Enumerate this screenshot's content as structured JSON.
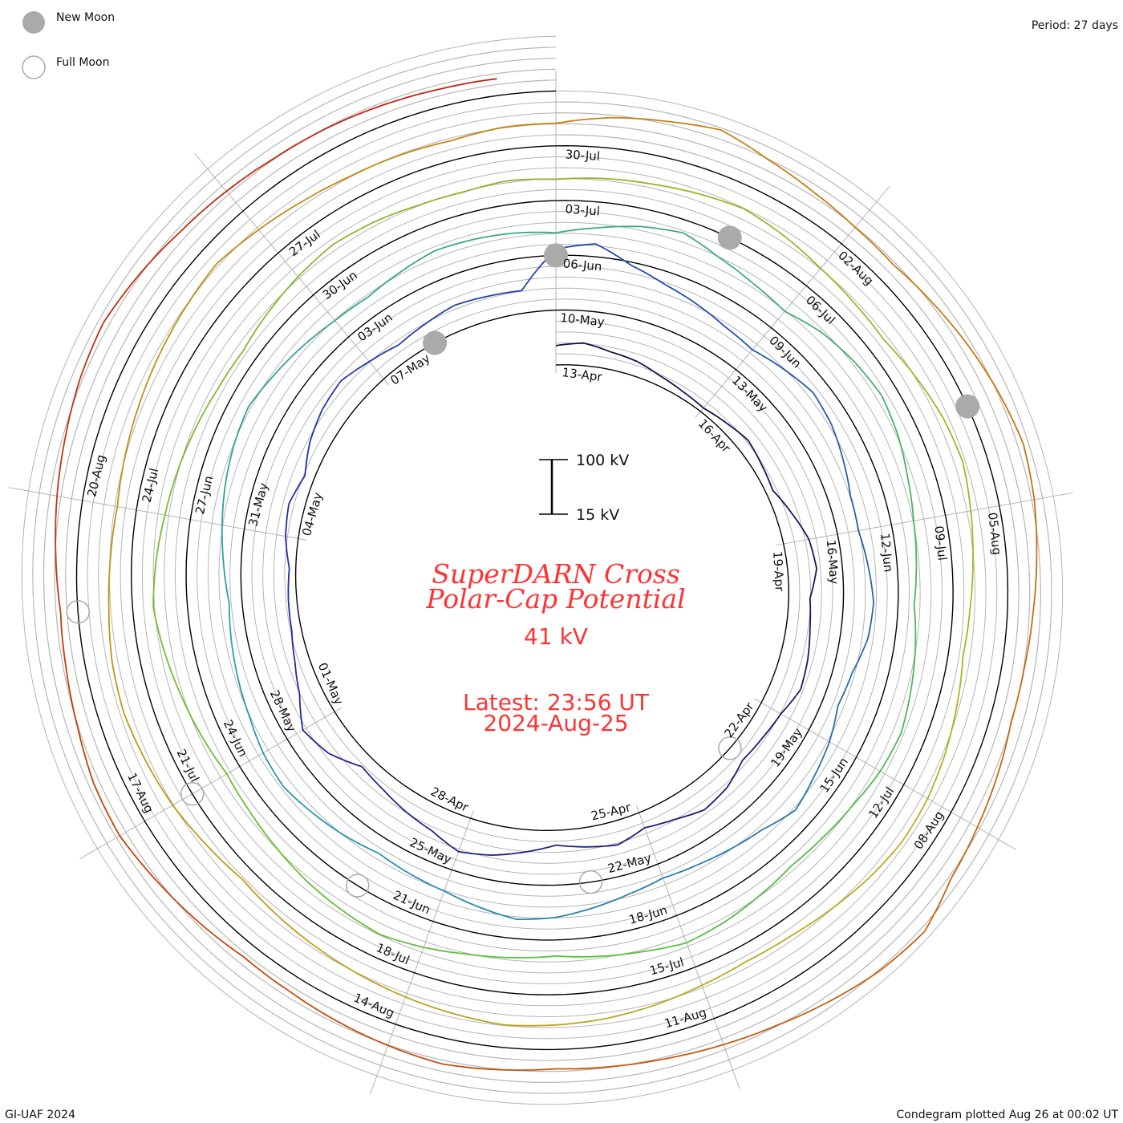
{
  "legend": {
    "new_moon": "New Moon",
    "full_moon": "Full Moon"
  },
  "period_label": "Period: 27 days",
  "footer_left": "GI-UAF 2024",
  "footer_right": "Condegram plotted Aug 26 at 00:02 UT",
  "colors": {
    "stops": [
      "#1a0a40",
      "#2233aa",
      "#2a9ab0",
      "#5cc03a",
      "#b8b020",
      "#c87a10",
      "#c02010"
    ],
    "title": "#ff3333",
    "moon": "#aaaaaa",
    "grid": "#b4b4b4"
  },
  "chart_data": {
    "type": "line",
    "title": [
      "SuperDARN Cross",
      "Polar-Cap Potential"
    ],
    "current_value": "41 kV",
    "latest": "Latest: 23:56 UT",
    "latest_date": "2024-Aug-25",
    "scale_bar": {
      "top": "100 kV",
      "bottom": "15 kV",
      "min_kv": 15,
      "max_kv": 100
    },
    "period_days": 27,
    "start_date": "13-Apr",
    "samples_per_day": 2,
    "ylabel": "kV",
    "values": [
      45,
      50,
      42,
      38,
      30,
      25,
      22,
      28,
      35,
      30,
      26,
      40,
      55,
      60,
      48,
      52,
      58,
      62,
      50,
      45,
      42,
      55,
      60,
      48,
      40,
      52,
      45,
      38,
      50,
      62,
      70,
      55,
      48,
      40,
      35,
      60,
      72,
      50,
      38,
      30,
      28,
      25,
      35,
      40,
      30,
      45,
      55,
      60,
      50,
      42,
      48,
      55,
      52,
      50,
      110,
      120,
      95,
      80,
      70,
      60,
      55,
      65,
      75,
      70,
      60,
      50,
      48,
      55,
      62,
      58,
      45,
      40,
      52,
      60,
      70,
      55,
      48,
      42,
      38,
      45,
      55,
      65,
      70,
      60,
      50,
      45,
      40,
      48,
      55,
      62,
      58,
      50,
      45,
      40,
      35,
      42,
      50,
      58,
      65,
      70,
      62,
      55,
      48,
      45,
      52,
      60,
      58,
      55,
      50,
      60,
      72,
      80,
      65,
      55,
      48,
      62,
      70,
      75,
      68,
      58,
      50,
      45,
      40,
      48,
      55,
      62,
      58,
      50,
      45,
      42,
      48,
      55,
      60,
      52,
      46,
      40,
      45,
      50,
      58,
      65,
      60,
      55,
      48,
      42,
      38,
      45,
      52,
      60,
      68,
      62,
      55,
      50,
      45,
      40,
      38,
      45,
      52,
      58,
      55,
      50,
      48,
      52,
      48,
      52,
      55,
      60,
      65,
      58,
      50,
      45,
      42,
      50,
      58,
      62,
      55,
      48,
      42,
      38,
      45,
      52,
      58,
      60,
      55,
      48,
      42,
      40,
      45,
      52,
      58,
      62,
      65,
      60,
      55,
      50,
      45,
      40,
      35,
      42,
      50,
      55,
      60,
      58,
      52,
      48,
      45,
      50,
      55,
      60,
      65,
      70,
      62,
      55,
      50,
      48,
      45,
      50,
      50,
      62,
      70,
      80,
      65,
      55,
      48,
      45,
      52,
      60,
      68,
      75,
      70,
      62,
      55,
      50,
      48,
      55,
      62,
      70,
      90,
      85,
      75,
      65,
      58,
      52,
      48,
      45,
      50,
      55,
      50,
      45,
      40,
      38,
      45,
      52,
      60,
      58,
      50,
      45,
      42,
      48,
      55,
      62,
      70,
      75,
      68,
      60,
      55,
      50,
      48,
      45,
      42,
      41
    ],
    "date_labels": [
      {
        "day": 0,
        "text": "13-Apr"
      },
      {
        "day": 3,
        "text": "16-Apr"
      },
      {
        "day": 6,
        "text": "19-Apr"
      },
      {
        "day": 9,
        "text": "22-Apr"
      },
      {
        "day": 12,
        "text": "25-Apr"
      },
      {
        "day": 15,
        "text": "28-Apr"
      },
      {
        "day": 18,
        "text": "01-May"
      },
      {
        "day": 21,
        "text": "04-May"
      },
      {
        "day": 24,
        "text": "07-May"
      },
      {
        "day": 27,
        "text": "10-May"
      },
      {
        "day": 30,
        "text": "13-May"
      },
      {
        "day": 33,
        "text": "16-May"
      },
      {
        "day": 36,
        "text": "19-May"
      },
      {
        "day": 39,
        "text": "22-May"
      },
      {
        "day": 42,
        "text": "25-May"
      },
      {
        "day": 45,
        "text": "28-May"
      },
      {
        "day": 48,
        "text": "31-May"
      },
      {
        "day": 51,
        "text": "03-Jun"
      },
      {
        "day": 54,
        "text": "06-Jun"
      },
      {
        "day": 57,
        "text": "09-Jun"
      },
      {
        "day": 60,
        "text": "12-Jun"
      },
      {
        "day": 63,
        "text": "15-Jun"
      },
      {
        "day": 66,
        "text": "18-Jun"
      },
      {
        "day": 69,
        "text": "21-Jun"
      },
      {
        "day": 72,
        "text": "24-Jun"
      },
      {
        "day": 75,
        "text": "27-Jun"
      },
      {
        "day": 78,
        "text": "30-Jun"
      },
      {
        "day": 81,
        "text": "03-Jul"
      },
      {
        "day": 84,
        "text": "06-Jul"
      },
      {
        "day": 87,
        "text": "09-Jul"
      },
      {
        "day": 90,
        "text": "12-Jul"
      },
      {
        "day": 93,
        "text": "15-Jul"
      },
      {
        "day": 96,
        "text": "18-Jul"
      },
      {
        "day": 99,
        "text": "21-Jul"
      },
      {
        "day": 102,
        "text": "24-Jul"
      },
      {
        "day": 105,
        "text": "27-Jul"
      },
      {
        "day": 108,
        "text": "30-Jul"
      },
      {
        "day": 111,
        "text": "02-Aug"
      },
      {
        "day": 114,
        "text": "05-Aug"
      },
      {
        "day": 117,
        "text": "08-Aug"
      },
      {
        "day": 120,
        "text": "11-Aug"
      },
      {
        "day": 123,
        "text": "14-Aug"
      },
      {
        "day": 126,
        "text": "17-Aug"
      },
      {
        "day": 129,
        "text": "20-Aug"
      }
    ],
    "new_moons_day": [
      25,
      54,
      83,
      113
    ],
    "full_moons_day": [
      10,
      40,
      70,
      99,
      128
    ]
  }
}
